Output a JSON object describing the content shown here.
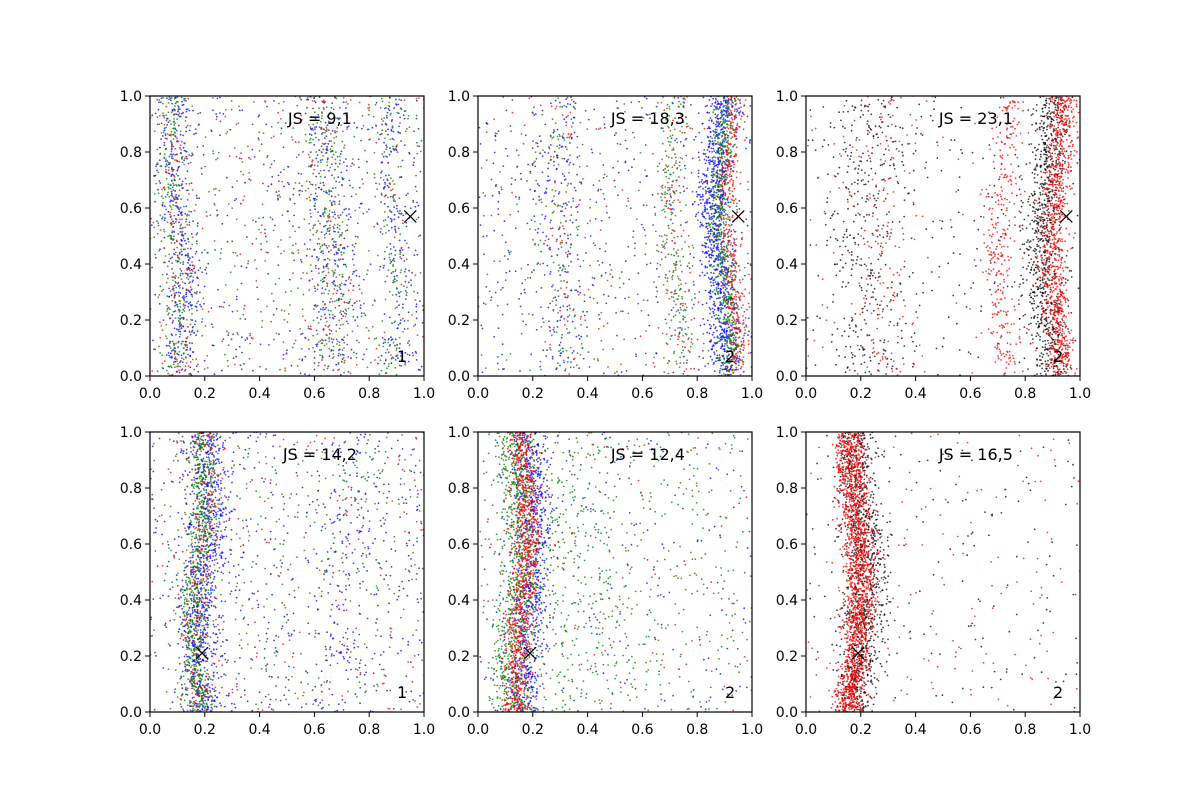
{
  "figure": {
    "background": "#ffffff"
  },
  "colors": {
    "blue": "#0000ff",
    "green": "#007f00",
    "red": "#ff0000",
    "black": "#000000"
  },
  "chart_data": [
    {
      "type": "scatter",
      "annotation": "JS = 9,1",
      "panel_number": "1",
      "xlim": [
        0,
        1
      ],
      "ylim": [
        0,
        1
      ],
      "xticks": [
        "0.0",
        "0.2",
        "0.4",
        "0.6",
        "0.8",
        "1.0"
      ],
      "yticks": [
        "0.0",
        "0.2",
        "0.4",
        "0.6",
        "0.8",
        "1.0"
      ],
      "marker": {
        "x": 0.95,
        "y": 0.57,
        "symbol": "x"
      },
      "series": [
        {
          "color": "blue",
          "bands": [
            {
              "center": 0.11,
              "spread": 0.035,
              "weight": 0.3
            },
            {
              "center": 0.65,
              "spread": 0.05,
              "weight": 0.2
            },
            {
              "center": 0.9,
              "spread": 0.04,
              "weight": 0.15
            },
            {
              "uniform": true,
              "weight": 0.35
            }
          ],
          "count": 1200
        },
        {
          "color": "green",
          "bands": [
            {
              "center": 0.09,
              "spread": 0.03,
              "weight": 0.3
            },
            {
              "center": 0.65,
              "spread": 0.04,
              "weight": 0.25
            },
            {
              "center": 0.88,
              "spread": 0.03,
              "weight": 0.15
            },
            {
              "uniform": true,
              "weight": 0.3
            }
          ],
          "count": 900
        },
        {
          "color": "red",
          "bands": [
            {
              "center": 0.1,
              "spread": 0.035,
              "weight": 0.25
            },
            {
              "center": 0.66,
              "spread": 0.05,
              "weight": 0.2
            },
            {
              "uniform": true,
              "weight": 0.55
            }
          ],
          "count": 450
        }
      ]
    },
    {
      "type": "scatter",
      "annotation": "JS = 18,3",
      "panel_number": "2",
      "xlim": [
        0,
        1
      ],
      "ylim": [
        0,
        1
      ],
      "xticks": [
        "0.0",
        "0.2",
        "0.4",
        "0.6",
        "0.8",
        "1.0"
      ],
      "yticks": [
        "0.0",
        "0.2",
        "0.4",
        "0.6",
        "0.8",
        "1.0"
      ],
      "marker": {
        "x": 0.95,
        "y": 0.57,
        "symbol": "x"
      },
      "series": [
        {
          "color": "blue",
          "bands": [
            {
              "center": 0.88,
              "spread": 0.03,
              "weight": 0.6
            },
            {
              "center": 0.3,
              "spread": 0.05,
              "weight": 0.1
            },
            {
              "uniform": true,
              "weight": 0.3
            }
          ],
          "count": 1500
        },
        {
          "color": "green",
          "bands": [
            {
              "center": 0.9,
              "spread": 0.02,
              "weight": 0.55
            },
            {
              "center": 0.72,
              "spread": 0.03,
              "weight": 0.2
            },
            {
              "center": 0.3,
              "spread": 0.04,
              "weight": 0.1
            },
            {
              "uniform": true,
              "weight": 0.15
            }
          ],
          "count": 1100
        },
        {
          "color": "red",
          "bands": [
            {
              "center": 0.93,
              "spread": 0.02,
              "weight": 0.55
            },
            {
              "center": 0.72,
              "spread": 0.03,
              "weight": 0.15
            },
            {
              "center": 0.3,
              "spread": 0.04,
              "weight": 0.1
            },
            {
              "uniform": true,
              "weight": 0.2
            }
          ],
          "count": 700
        }
      ]
    },
    {
      "type": "scatter",
      "annotation": "JS = 23,1",
      "panel_number": "2",
      "xlim": [
        0,
        1
      ],
      "ylim": [
        0,
        1
      ],
      "xticks": [
        "0.0",
        "0.2",
        "0.4",
        "0.6",
        "0.8",
        "1.0"
      ],
      "yticks": [
        "0.0",
        "0.2",
        "0.4",
        "0.6",
        "0.8",
        "1.0"
      ],
      "marker": {
        "x": 0.95,
        "y": 0.57,
        "symbol": "x"
      },
      "series": [
        {
          "color": "black",
          "bands": [
            {
              "center": 0.88,
              "spread": 0.035,
              "weight": 0.6
            },
            {
              "center": 0.22,
              "spread": 0.08,
              "weight": 0.2
            },
            {
              "uniform": true,
              "weight": 0.2
            }
          ],
          "count": 1400
        },
        {
          "color": "red",
          "bands": [
            {
              "center": 0.92,
              "spread": 0.025,
              "weight": 0.6
            },
            {
              "center": 0.72,
              "spread": 0.03,
              "weight": 0.2
            },
            {
              "center": 0.28,
              "spread": 0.06,
              "weight": 0.1
            },
            {
              "uniform": true,
              "weight": 0.1
            }
          ],
          "count": 1500
        }
      ]
    },
    {
      "type": "scatter",
      "annotation": "JS = 14,2",
      "panel_number": "1",
      "xlim": [
        0,
        1
      ],
      "ylim": [
        0,
        1
      ],
      "xticks": [
        "0.0",
        "0.2",
        "0.4",
        "0.6",
        "0.8",
        "1.0"
      ],
      "yticks": [
        "0.0",
        "0.2",
        "0.4",
        "0.6",
        "0.8",
        "1.0"
      ],
      "marker": {
        "x": 0.19,
        "y": 0.21,
        "symbol": "x"
      },
      "series": [
        {
          "color": "blue",
          "bands": [
            {
              "center": 0.2,
              "spread": 0.04,
              "weight": 0.55
            },
            {
              "center": 0.72,
              "spread": 0.06,
              "weight": 0.1
            },
            {
              "uniform": true,
              "weight": 0.35
            }
          ],
          "count": 1500
        },
        {
          "color": "green",
          "bands": [
            {
              "center": 0.18,
              "spread": 0.025,
              "weight": 0.7
            },
            {
              "uniform": true,
              "weight": 0.3
            }
          ],
          "count": 1000
        },
        {
          "color": "red",
          "bands": [
            {
              "center": 0.19,
              "spread": 0.03,
              "weight": 0.5
            },
            {
              "uniform": true,
              "weight": 0.5
            }
          ],
          "count": 500
        }
      ]
    },
    {
      "type": "scatter",
      "annotation": "JS = 12,4",
      "panel_number": "2",
      "xlim": [
        0,
        1
      ],
      "ylim": [
        0,
        1
      ],
      "xticks": [
        "0.0",
        "0.2",
        "0.4",
        "0.6",
        "0.8",
        "1.0"
      ],
      "yticks": [
        "0.0",
        "0.2",
        "0.4",
        "0.6",
        "0.8",
        "1.0"
      ],
      "marker": {
        "x": 0.19,
        "y": 0.21,
        "symbol": "x"
      },
      "series": [
        {
          "color": "blue",
          "bands": [
            {
              "center": 0.19,
              "spread": 0.035,
              "weight": 0.75
            },
            {
              "uniform": true,
              "weight": 0.25
            }
          ],
          "count": 1000
        },
        {
          "color": "green",
          "bands": [
            {
              "center": 0.14,
              "spread": 0.035,
              "weight": 0.55
            },
            {
              "center": 0.35,
              "spread": 0.12,
              "weight": 0.2
            },
            {
              "uniform": true,
              "weight": 0.25
            }
          ],
          "count": 1500
        },
        {
          "color": "red",
          "bands": [
            {
              "center": 0.16,
              "spread": 0.025,
              "weight": 0.85
            },
            {
              "uniform": true,
              "weight": 0.15
            }
          ],
          "count": 1100
        }
      ]
    },
    {
      "type": "scatter",
      "annotation": "JS = 16,5",
      "panel_number": "2",
      "xlim": [
        0,
        1
      ],
      "ylim": [
        0,
        1
      ],
      "xticks": [
        "0.0",
        "0.2",
        "0.4",
        "0.6",
        "0.8",
        "1.0"
      ],
      "yticks": [
        "0.0",
        "0.2",
        "0.4",
        "0.6",
        "0.8",
        "1.0"
      ],
      "marker": {
        "x": 0.19,
        "y": 0.21,
        "symbol": "x"
      },
      "series": [
        {
          "color": "black",
          "bands": [
            {
              "center": 0.2,
              "spread": 0.04,
              "weight": 0.85
            },
            {
              "uniform": true,
              "weight": 0.15
            }
          ],
          "count": 1200
        },
        {
          "color": "red",
          "bands": [
            {
              "center": 0.18,
              "spread": 0.028,
              "weight": 0.9
            },
            {
              "uniform": true,
              "weight": 0.1
            }
          ],
          "count": 1900
        }
      ]
    }
  ]
}
